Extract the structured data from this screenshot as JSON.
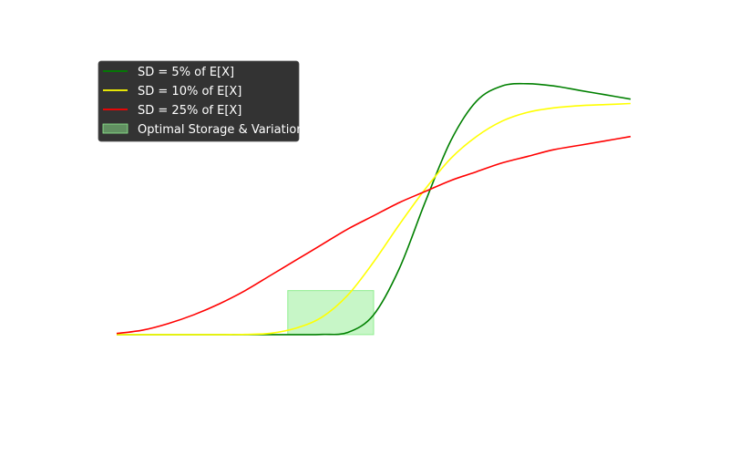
{
  "chart_data": {
    "type": "line",
    "title": "",
    "xlabel": "",
    "ylabel": "",
    "axes_visible": false,
    "grid": false,
    "legend_placement": "upper-left",
    "legend_style": {
      "background": "#333333",
      "text_color": "#ffffff"
    },
    "xlim": [
      0,
      1
    ],
    "ylim": [
      -0.22,
      1.28
    ],
    "series": [
      {
        "name": "SD = 5% of E[X]",
        "color": "#008000",
        "x": [
          0,
          0.05,
          0.1,
          0.15,
          0.2,
          0.25,
          0.3,
          0.35,
          0.4,
          0.45,
          0.5,
          0.55,
          0.6,
          0.65,
          0.7,
          0.75,
          0.8,
          0.85,
          0.9,
          0.95,
          1.0
        ],
        "y": [
          0,
          0,
          0,
          0,
          0,
          0,
          0,
          0,
          0.001,
          0.01,
          0.09,
          0.3,
          0.6,
          0.88,
          1.06,
          1.13,
          1.14,
          1.13,
          1.11,
          1.09,
          1.07
        ]
      },
      {
        "name": "SD = 10% of E[X]",
        "color": "#ffff00",
        "x": [
          0,
          0.05,
          0.1,
          0.15,
          0.2,
          0.25,
          0.3,
          0.35,
          0.4,
          0.45,
          0.5,
          0.55,
          0.6,
          0.65,
          0.7,
          0.75,
          0.8,
          0.85,
          0.9,
          0.95,
          1.0
        ],
        "y": [
          0,
          0,
          0,
          0,
          0,
          0.001,
          0.006,
          0.03,
          0.08,
          0.18,
          0.33,
          0.5,
          0.66,
          0.8,
          0.9,
          0.97,
          1.01,
          1.03,
          1.04,
          1.045,
          1.05
        ]
      },
      {
        "name": "SD = 25% of E[X]",
        "color": "#ff0000",
        "x": [
          0,
          0.05,
          0.1,
          0.15,
          0.2,
          0.25,
          0.3,
          0.35,
          0.4,
          0.45,
          0.5,
          0.55,
          0.6,
          0.65,
          0.7,
          0.75,
          0.8,
          0.85,
          0.9,
          0.95,
          1.0
        ],
        "y": [
          0.005,
          0.02,
          0.05,
          0.09,
          0.14,
          0.2,
          0.27,
          0.34,
          0.41,
          0.48,
          0.54,
          0.6,
          0.65,
          0.7,
          0.74,
          0.78,
          0.81,
          0.84,
          0.86,
          0.88,
          0.9
        ]
      }
    ],
    "regions": [
      {
        "name": "Optimal Storage & Variation",
        "color": "#90ee90",
        "x_range": [
          0.333,
          0.5
        ],
        "y_range": [
          0,
          0.2
        ]
      }
    ]
  }
}
